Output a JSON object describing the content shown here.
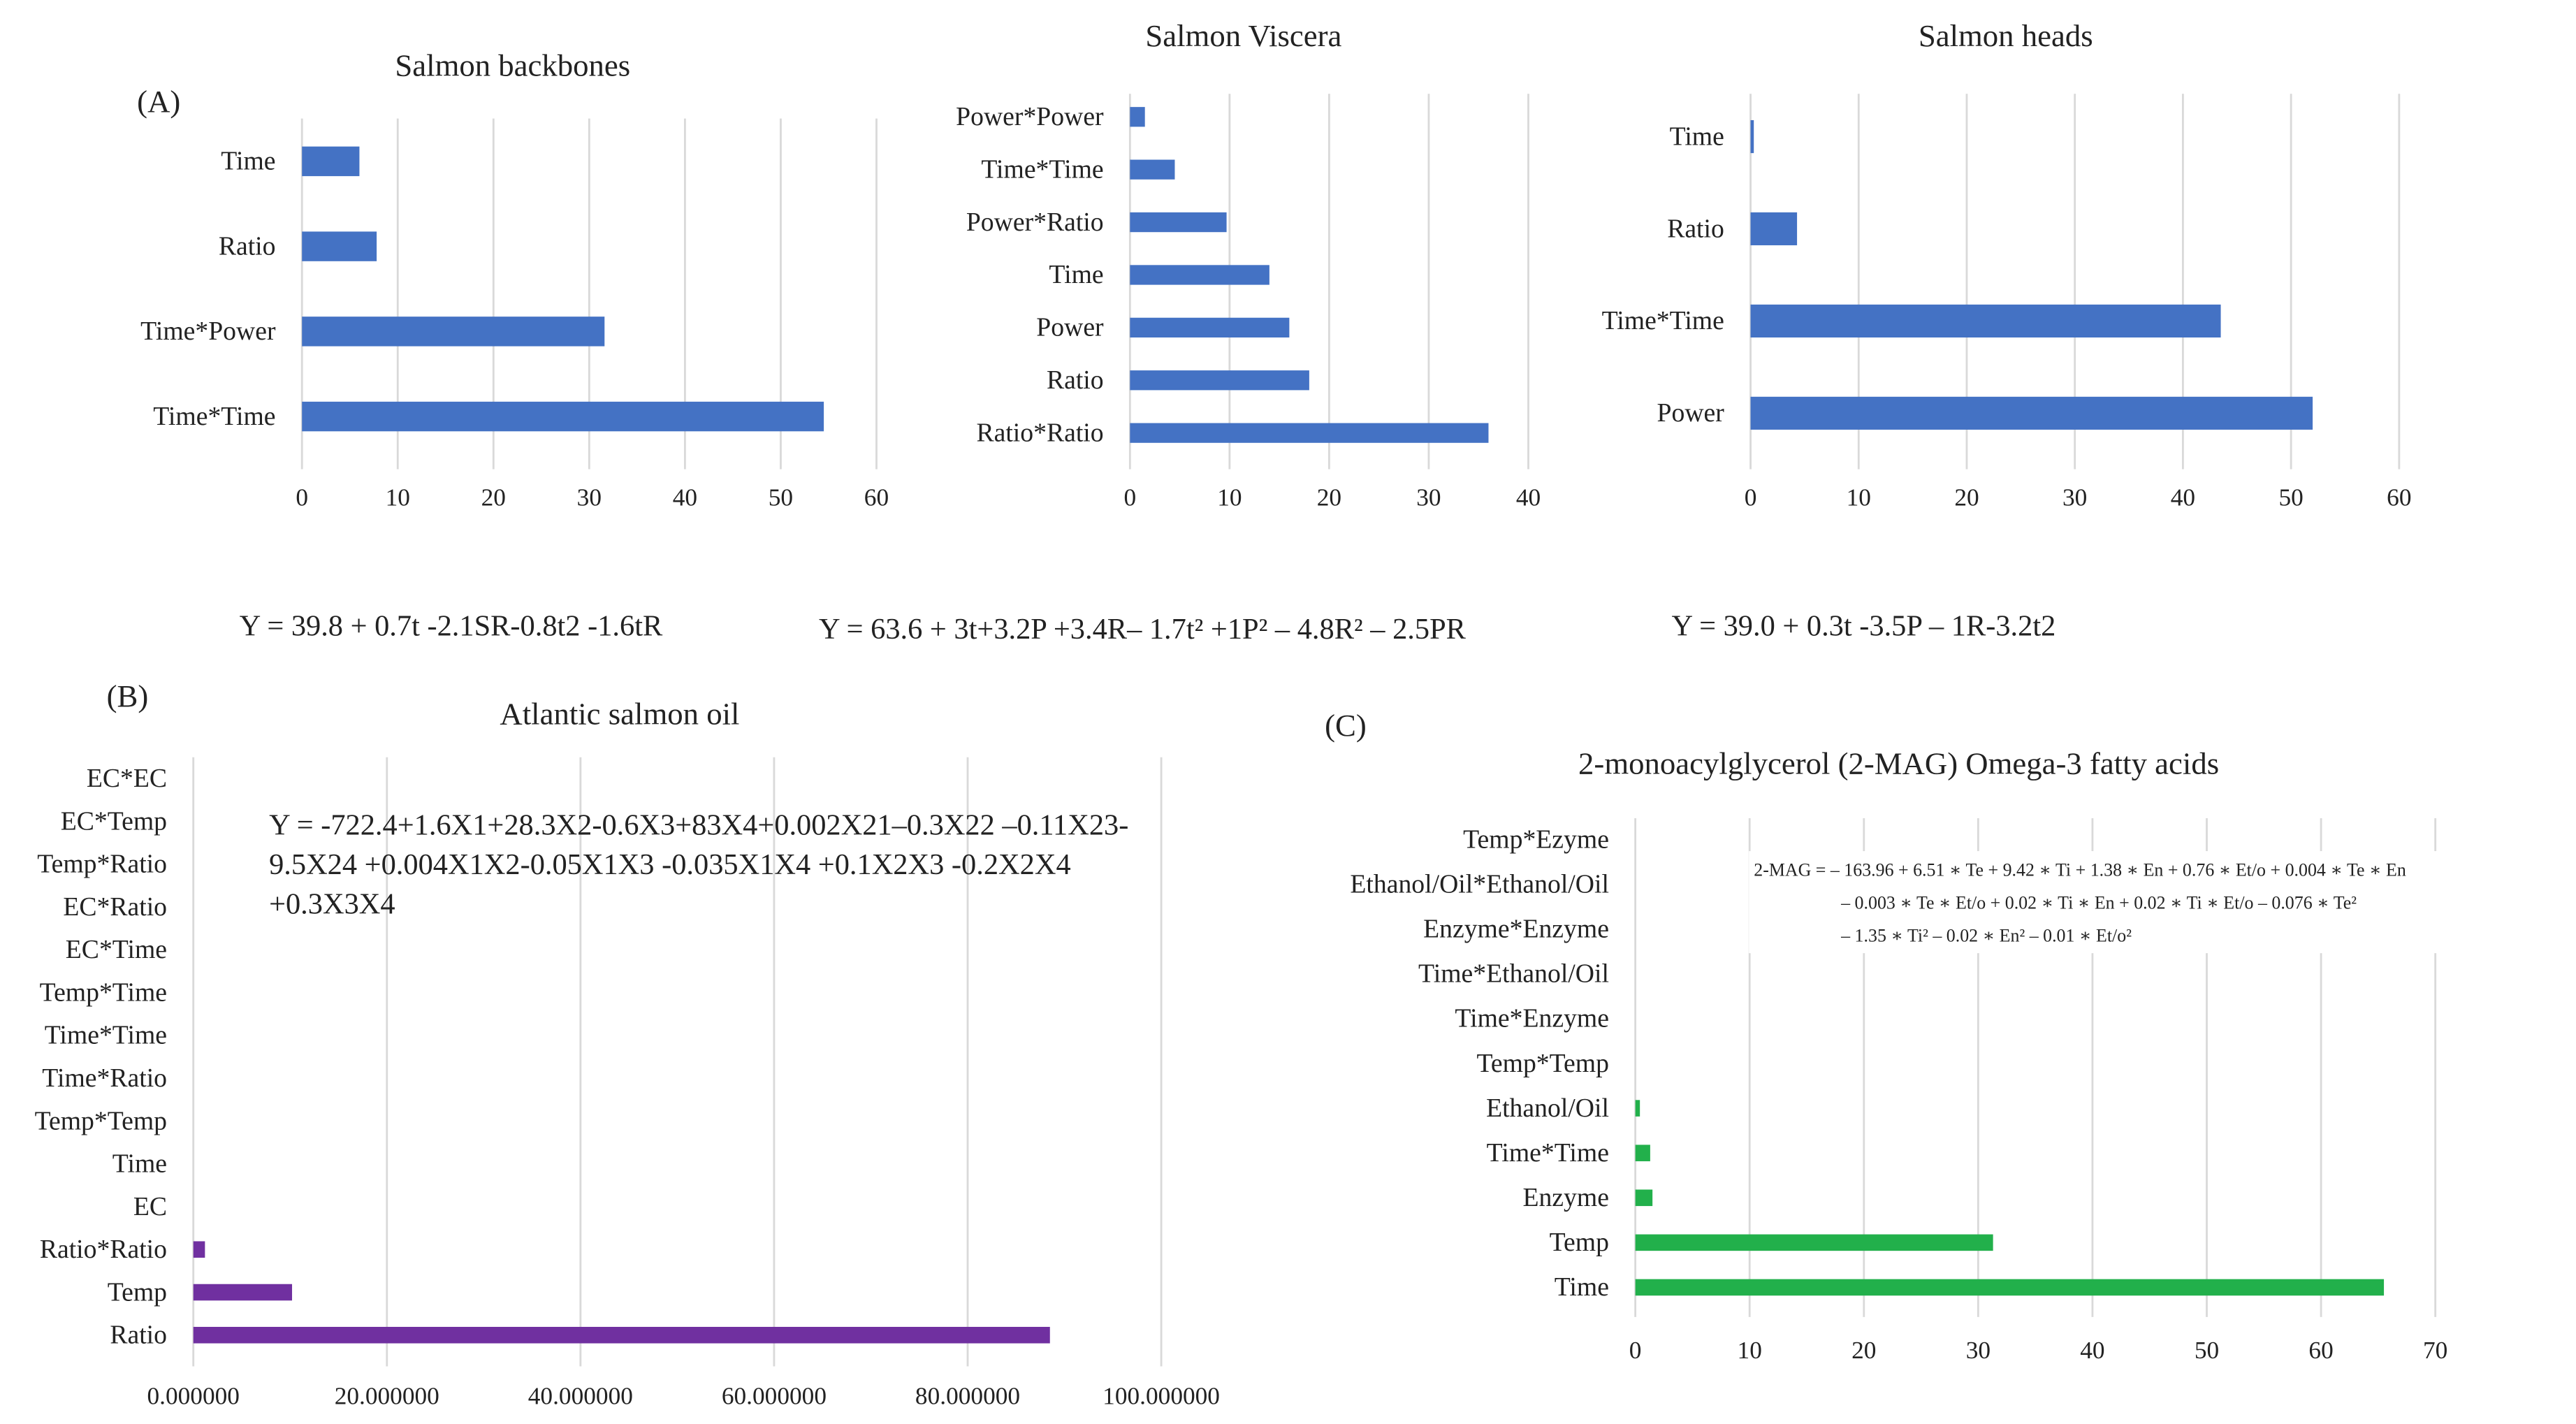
{
  "panel_labels": {
    "a": "(A)",
    "b": "(B)",
    "c": "(C)"
  },
  "colors": {
    "blue": "#4472c4",
    "purple": "#7030a0",
    "green": "#22b04b",
    "grid": "#d9d9d9"
  },
  "equations": {
    "backbones": "Y = 39.8 + 0.7t -2.1SR-0.8t2 -1.6tR",
    "viscera": "Y = 63.6 + 3t+3.2P +3.4R– 1.7t² +1P² – 4.8R² – 2.5PR",
    "heads": "Y = 39.0 + 0.3t -3.5P – 1R-3.2t2",
    "oil": [
      "Y = -722.4+1.6X1+28.3X2-0.6X3+83X4+0.002X21–0.3X22 –0.11X23-",
      "9.5X24 +0.004X1X2-0.05X1X3 -0.035X1X4 +0.1X2X3 -0.2X2X4",
      "+0.3X3X4"
    ],
    "mag": [
      "2-MAG = – 163.96 + 6.51 ∗ Te + 9.42 ∗ Ti + 1.38 ∗ En + 0.76 ∗ Et/o + 0.004 ∗ Te ∗ En",
      "– 0.003 ∗ Te ∗ Et/o + 0.02 ∗ Ti ∗ En + 0.02 ∗ Ti ∗ Et/o – 0.076 ∗ Te²",
      "– 1.35 ∗ Ti² – 0.02 ∗ En² – 0.01 ∗ Et/o²"
    ]
  },
  "chart_data": [
    {
      "type": "bar",
      "orientation": "horizontal",
      "title": "Salmon backbones",
      "categories": [
        "Time",
        "Ratio",
        "Time*Power",
        "Time*Time"
      ],
      "values": [
        6,
        7.8,
        31.6,
        54.5
      ],
      "xlim": [
        0,
        60
      ],
      "ticks": [
        "0",
        "10",
        "20",
        "30",
        "40",
        "50",
        "60"
      ],
      "grid": true
    },
    {
      "type": "bar",
      "orientation": "horizontal",
      "title": "Salmon Viscera",
      "categories": [
        "Power*Power",
        "Time*Time",
        "Power*Ratio",
        "Time",
        "Power",
        "Ratio",
        "Ratio*Ratio"
      ],
      "values": [
        1.5,
        4.5,
        9.7,
        14,
        16,
        18,
        36
      ],
      "xlim": [
        0,
        40
      ],
      "ticks": [
        "0",
        "10",
        "20",
        "30",
        "40"
      ],
      "grid": true
    },
    {
      "type": "bar",
      "orientation": "horizontal",
      "title": "Salmon heads",
      "categories": [
        "Time",
        "Ratio",
        "Time*Time",
        "Power"
      ],
      "values": [
        0.3,
        4.3,
        43.5,
        52
      ],
      "xlim": [
        0,
        60
      ],
      "ticks": [
        "0",
        "10",
        "20",
        "30",
        "40",
        "50",
        "60"
      ],
      "grid": true
    },
    {
      "type": "bar",
      "orientation": "horizontal",
      "title": "Atlantic salmon oil",
      "categories": [
        "EC*EC",
        "EC*Temp",
        "Temp*Ratio",
        "EC*Ratio",
        "EC*Time",
        "Temp*Time",
        "Time*Time",
        "Time*Ratio",
        "Temp*Temp",
        "Time",
        "EC",
        "Ratio*Ratio",
        "Temp",
        "Ratio"
      ],
      "values": [
        0,
        0,
        0,
        0,
        0,
        0,
        0,
        0,
        0,
        0,
        0,
        1.2,
        10.2,
        88.5
      ],
      "xlim": [
        0,
        100
      ],
      "ticks": [
        "0.000000",
        "20.000000",
        "40.000000",
        "60.000000",
        "80.000000",
        "100.000000"
      ],
      "grid": true
    },
    {
      "type": "bar",
      "orientation": "horizontal",
      "title": "2-monoacylglycerol (2-MAG) Omega-3 fatty acids",
      "categories": [
        "Temp*Ezyme",
        "Ethanol/Oil*Ethanol/Oil",
        "Enzyme*Enzyme",
        "Time*Ethanol/Oil",
        "Time*Enzyme",
        "Temp*Temp",
        "Ethanol/Oil",
        "Time*Time",
        "Enzyme",
        "Temp",
        "Time"
      ],
      "values": [
        0,
        0,
        0,
        0,
        0,
        0,
        0.4,
        1.3,
        1.5,
        31.3,
        65.5
      ],
      "xlim": [
        0,
        70
      ],
      "ticks": [
        "0",
        "10",
        "20",
        "30",
        "40",
        "50",
        "60",
        "70"
      ],
      "grid": true
    }
  ]
}
